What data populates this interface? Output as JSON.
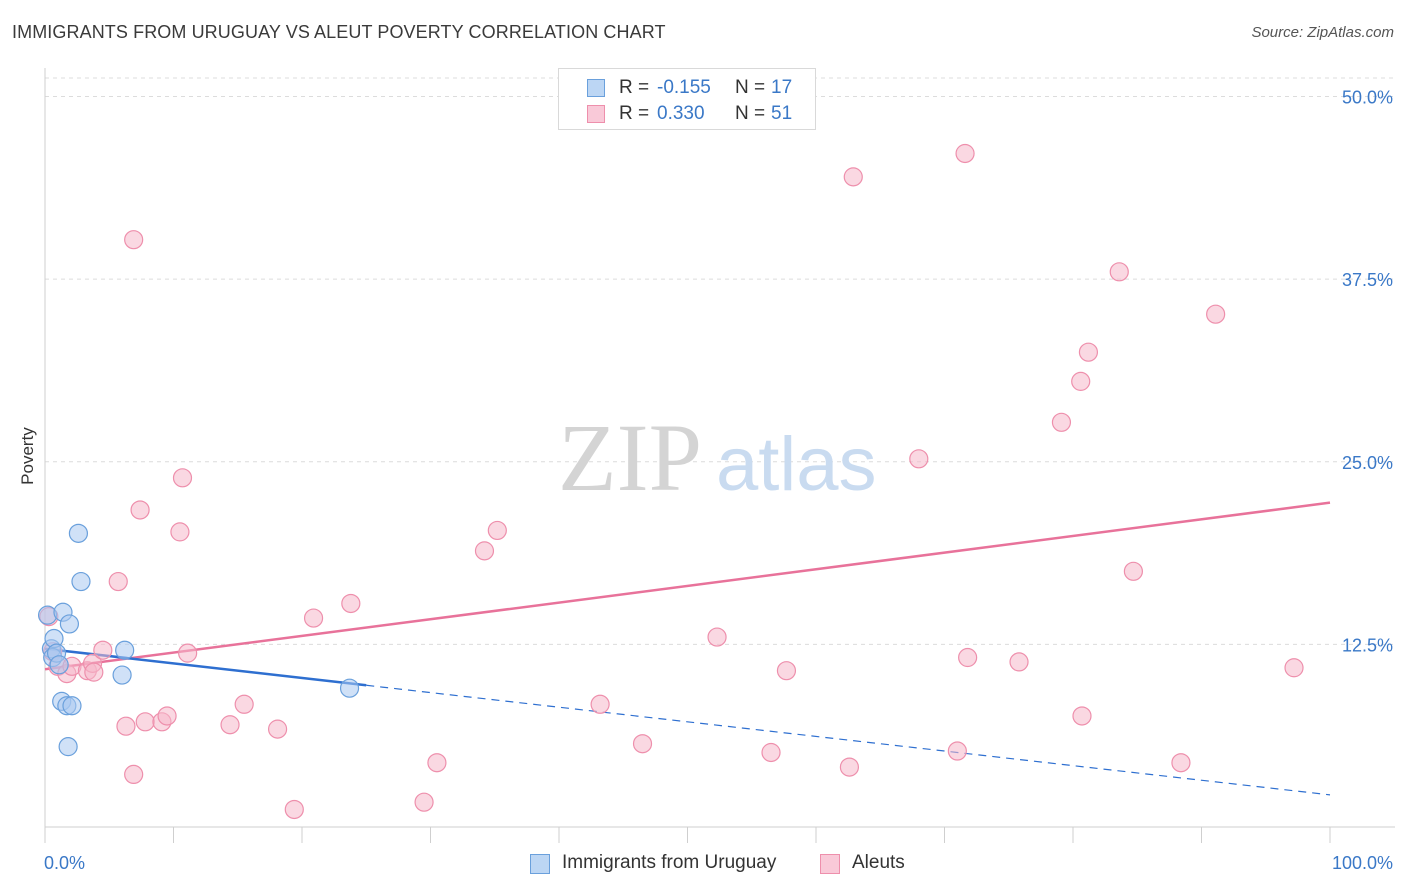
{
  "header": {
    "title": "IMMIGRANTS FROM URUGUAY VS ALEUT POVERTY CORRELATION CHART",
    "source": "Source: ZipAtlas.com"
  },
  "watermark": {
    "zip": "ZIP",
    "atlas": "atlas"
  },
  "legend_top": {
    "rows": [
      {
        "r_label": "R =",
        "r_value": "-0.155",
        "n_label": "N =",
        "n_value": "17"
      },
      {
        "r_label": "R =",
        "r_value": "0.330",
        "n_label": "N =",
        "n_value": "51"
      }
    ]
  },
  "colors": {
    "blue_fill": "#a9c9f0",
    "blue_stroke": "#6aa0dc",
    "blue_line": "#2e6fd0",
    "pink_fill": "#f6b8cb",
    "pink_stroke": "#ee8fac",
    "pink_line": "#e8729a",
    "axis_text": "#3a78c7",
    "grid": "#dcdcdc"
  },
  "chart_data": {
    "type": "scatter",
    "title": "IMMIGRANTS FROM URUGUAY VS ALEUT POVERTY CORRELATION CHART",
    "xlabel": "",
    "ylabel": "Poverty",
    "xlim": [
      0,
      100
    ],
    "ylim": [
      0,
      52
    ],
    "x_tick_labels": [
      "0.0%",
      "100.0%"
    ],
    "y_ticks": [
      12.5,
      25.0,
      37.5,
      50.0
    ],
    "y_tick_labels": [
      "12.5%",
      "25.0%",
      "37.5%",
      "50.0%"
    ],
    "grid": true,
    "series": [
      {
        "name": "Immigrants from Uruguay",
        "color": "blue",
        "R": -0.155,
        "N": 17,
        "points": [
          [
            0.2,
            14.5
          ],
          [
            0.5,
            12.2
          ],
          [
            0.6,
            11.6
          ],
          [
            0.7,
            12.9
          ],
          [
            0.9,
            11.9
          ],
          [
            1.1,
            11.1
          ],
          [
            1.3,
            8.6
          ],
          [
            1.4,
            14.7
          ],
          [
            1.7,
            8.3
          ],
          [
            1.8,
            5.5
          ],
          [
            1.9,
            13.9
          ],
          [
            2.1,
            8.3
          ],
          [
            2.6,
            20.1
          ],
          [
            2.8,
            16.8
          ],
          [
            6.2,
            12.1
          ],
          [
            6.0,
            10.4
          ],
          [
            23.7,
            9.5
          ]
        ],
        "trend": {
          "x": [
            0,
            25
          ],
          "y": [
            12.2,
            9.7
          ]
        },
        "trend_dashed": {
          "x": [
            25,
            100
          ],
          "y": [
            9.7,
            2.2
          ]
        }
      },
      {
        "name": "Aleuts",
        "color": "pink",
        "R": 0.33,
        "N": 51,
        "points": [
          [
            0.3,
            14.4
          ],
          [
            0.6,
            12.0
          ],
          [
            1.0,
            11.0
          ],
          [
            1.7,
            10.5
          ],
          [
            2.1,
            11.0
          ],
          [
            3.3,
            10.7
          ],
          [
            3.7,
            11.2
          ],
          [
            3.8,
            10.6
          ],
          [
            4.5,
            12.1
          ],
          [
            5.7,
            16.8
          ],
          [
            6.3,
            6.9
          ],
          [
            6.9,
            3.6
          ],
          [
            6.9,
            40.2
          ],
          [
            7.4,
            21.7
          ],
          [
            7.8,
            7.2
          ],
          [
            9.1,
            7.2
          ],
          [
            9.5,
            7.6
          ],
          [
            10.5,
            20.2
          ],
          [
            10.7,
            23.9
          ],
          [
            11.1,
            11.9
          ],
          [
            14.4,
            7.0
          ],
          [
            15.5,
            8.4
          ],
          [
            18.1,
            6.7
          ],
          [
            19.4,
            1.2
          ],
          [
            20.9,
            14.3
          ],
          [
            23.8,
            15.3
          ],
          [
            29.5,
            1.7
          ],
          [
            30.5,
            4.4
          ],
          [
            34.2,
            18.9
          ],
          [
            35.2,
            20.3
          ],
          [
            43.2,
            8.4
          ],
          [
            46.5,
            5.7
          ],
          [
            52.3,
            13.0
          ],
          [
            56.5,
            5.1
          ],
          [
            57.7,
            10.7
          ],
          [
            62.6,
            4.1
          ],
          [
            62.9,
            44.5
          ],
          [
            68.0,
            25.2
          ],
          [
            71.6,
            46.1
          ],
          [
            71.0,
            5.2
          ],
          [
            71.8,
            11.6
          ],
          [
            75.8,
            11.3
          ],
          [
            79.1,
            27.7
          ],
          [
            80.7,
            7.6
          ],
          [
            80.6,
            30.5
          ],
          [
            81.2,
            32.5
          ],
          [
            83.6,
            38.0
          ],
          [
            84.7,
            17.5
          ],
          [
            88.4,
            4.4
          ],
          [
            91.1,
            35.1
          ],
          [
            97.2,
            10.9
          ]
        ],
        "trend": {
          "x": [
            0,
            100
          ],
          "y": [
            10.8,
            22.2
          ]
        }
      }
    ]
  },
  "bottom_legend": {
    "items": [
      {
        "label": "Immigrants from Uruguay"
      },
      {
        "label": "Aleuts"
      }
    ]
  }
}
